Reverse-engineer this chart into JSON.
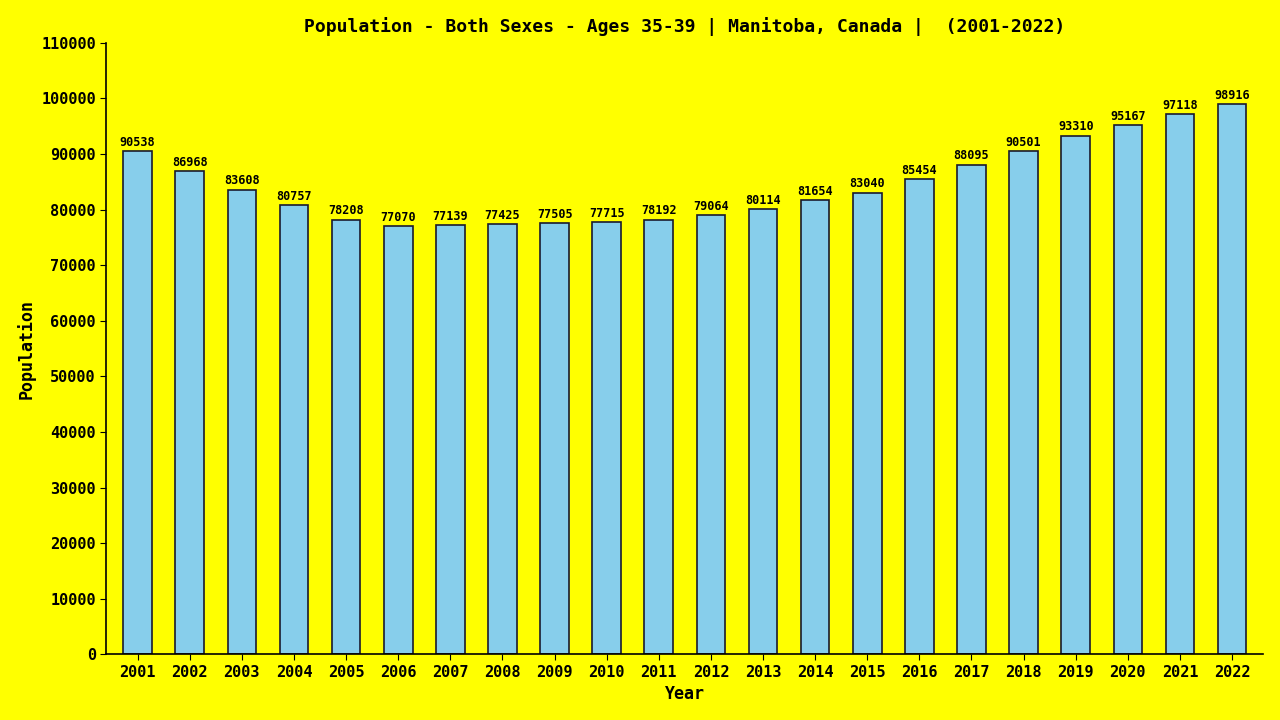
{
  "title": "Population - Both Sexes - Ages 35-39 | Manitoba, Canada |  (2001-2022)",
  "xlabel": "Year",
  "ylabel": "Population",
  "background_color": "#FFFF00",
  "bar_color": "#87CEEB",
  "bar_edge_color": "#1a1a2e",
  "years": [
    2001,
    2002,
    2003,
    2004,
    2005,
    2006,
    2007,
    2008,
    2009,
    2010,
    2011,
    2012,
    2013,
    2014,
    2015,
    2016,
    2017,
    2018,
    2019,
    2020,
    2021,
    2022
  ],
  "values": [
    90538,
    86968,
    83608,
    80757,
    78208,
    77070,
    77139,
    77425,
    77505,
    77715,
    78192,
    79064,
    80114,
    81654,
    83040,
    85454,
    88095,
    90501,
    93310,
    95167,
    97118,
    98916
  ],
  "ylim": [
    0,
    110000
  ],
  "yticks": [
    0,
    10000,
    20000,
    30000,
    40000,
    50000,
    60000,
    70000,
    80000,
    90000,
    100000,
    110000
  ],
  "title_fontsize": 13,
  "axis_label_fontsize": 12,
  "tick_fontsize": 11,
  "value_label_fontsize": 8.5,
  "bar_width": 0.55
}
